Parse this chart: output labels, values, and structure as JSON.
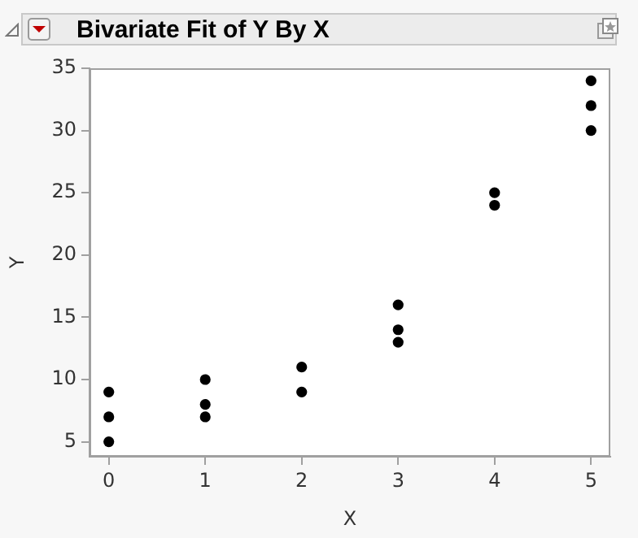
{
  "chart_data": {
    "type": "scatter",
    "title": "Bivariate Fit of Y By X",
    "xlabel": "X",
    "ylabel": "Y",
    "series": [
      {
        "color": "#000000",
        "x": [
          0,
          0,
          0,
          1,
          1,
          1,
          2,
          2,
          3,
          3,
          3,
          4,
          4,
          5,
          5,
          5
        ],
        "values": [
          5,
          7,
          9,
          7,
          8,
          10,
          9,
          11,
          13,
          14,
          16,
          24,
          25,
          30,
          32,
          34
        ]
      }
    ],
    "xlim": [
      -0.2,
      5.2
    ],
    "xticks": [
      0,
      1,
      2,
      3,
      4,
      5
    ],
    "ylim": [
      3.8,
      35
    ],
    "yticks": [
      5,
      10,
      15,
      20,
      25,
      30,
      35
    ],
    "grid": false,
    "legend": false,
    "marker": "circle"
  }
}
